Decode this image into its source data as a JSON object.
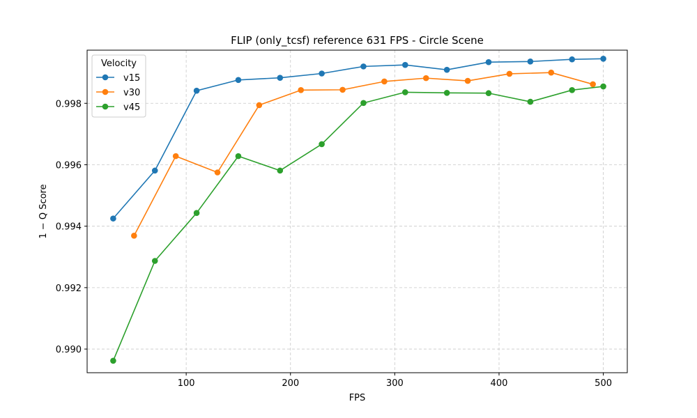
{
  "chart_data": {
    "type": "line",
    "title": "FLIP (only_tcsf) reference 631 FPS - Circle Scene",
    "xlabel": "FPS",
    "ylabel": "1 − Q Score",
    "xlim": [
      5,
      523
    ],
    "ylim": [
      0.98923,
      0.99973
    ],
    "xticks": [
      100,
      200,
      300,
      400,
      500
    ],
    "yticks": [
      0.99,
      0.992,
      0.994,
      0.996,
      0.998
    ],
    "grid": true,
    "legend": {
      "title": "Velocity",
      "placement": "top-left"
    },
    "series": [
      {
        "name": "v15",
        "color": "#1f77b4",
        "x": [
          30,
          70,
          110,
          150,
          190,
          230,
          270,
          310,
          350,
          390,
          430,
          470,
          500
        ],
        "y": [
          0.99425,
          0.99581,
          0.99841,
          0.99876,
          0.99883,
          0.99897,
          0.9992,
          0.99925,
          0.99909,
          0.99934,
          0.99936,
          0.99943,
          0.99945
        ]
      },
      {
        "name": "v30",
        "color": "#ff7f0e",
        "x": [
          50,
          90,
          130,
          170,
          210,
          250,
          290,
          330,
          370,
          410,
          450,
          490
        ],
        "y": [
          0.99369,
          0.99628,
          0.99575,
          0.99794,
          0.99843,
          0.99844,
          0.99871,
          0.99882,
          0.99873,
          0.99896,
          0.999,
          0.99862
        ]
      },
      {
        "name": "v45",
        "color": "#2ca02c",
        "x": [
          30,
          70,
          110,
          150,
          190,
          230,
          270,
          310,
          350,
          390,
          430,
          470,
          500
        ],
        "y": [
          0.98962,
          0.99287,
          0.99443,
          0.99628,
          0.99581,
          0.99667,
          0.99801,
          0.99836,
          0.99834,
          0.99833,
          0.99805,
          0.99843,
          0.99855
        ]
      }
    ]
  }
}
